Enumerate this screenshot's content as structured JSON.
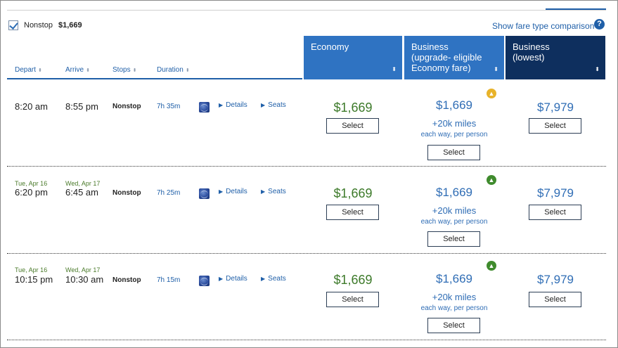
{
  "filter": {
    "label": "Nonstop",
    "price": "$1,669"
  },
  "fare_compare_link": "Show fare type comparison",
  "help_glyph": "?",
  "columns": {
    "depart": "Depart",
    "arrive": "Arrive",
    "stops": "Stops",
    "duration": "Duration"
  },
  "sort_glyph": "⬍",
  "cabins": {
    "economy": {
      "line1": "Economy",
      "line2": ""
    },
    "business_upgrade": {
      "line1": "Business",
      "line2": "(upgrade- eligible",
      "line3": "Economy fare)"
    },
    "business_lowest": {
      "line1": "Business",
      "line2": "(lowest)"
    }
  },
  "links": {
    "details": "Details",
    "seats": "Seats"
  },
  "select_label": "Select",
  "flights": [
    {
      "depart_date": "",
      "depart_time": "8:20 am",
      "arrive_date": "",
      "arrive_time": "8:55 pm",
      "stops": "Nonstop",
      "duration": "7h 35m",
      "economy_price": "$1,669",
      "business_upg_price": "$1,669",
      "business_upg_miles": "+20k miles",
      "business_upg_note": "each way, per person",
      "upgrade_status": "yellow",
      "business_low_price": "$7,979"
    },
    {
      "depart_date": "Tue, Apr 16",
      "depart_time": "6:20 pm",
      "arrive_date": "Wed, Apr 17",
      "arrive_time": "6:45 am",
      "stops": "Nonstop",
      "duration": "7h 25m",
      "economy_price": "$1,669",
      "business_upg_price": "$1,669",
      "business_upg_miles": "+20k miles",
      "business_upg_note": "each way, per person",
      "upgrade_status": "green",
      "business_low_price": "$7,979"
    },
    {
      "depart_date": "Tue, Apr 16",
      "depart_time": "10:15 pm",
      "arrive_date": "Wed, Apr 17",
      "arrive_time": "10:30 am",
      "stops": "Nonstop",
      "duration": "7h 15m",
      "economy_price": "$1,669",
      "business_upg_price": "$1,669",
      "business_upg_miles": "+20k miles",
      "business_upg_note": "each way, per person",
      "upgrade_status": "green",
      "business_low_price": "$7,979"
    }
  ],
  "colors": {
    "accent": "#2f73c2",
    "dark_header": "#0e2f5e",
    "economy_price": "#3d7a2a",
    "upgrade_yellow": "#e8b32a",
    "upgrade_green": "#3f8b2d"
  },
  "icons": {
    "upgrade": "upgrade-arrow-icon",
    "airline": "airline-globe-logo",
    "help": "help-icon",
    "check": "check-icon"
  }
}
